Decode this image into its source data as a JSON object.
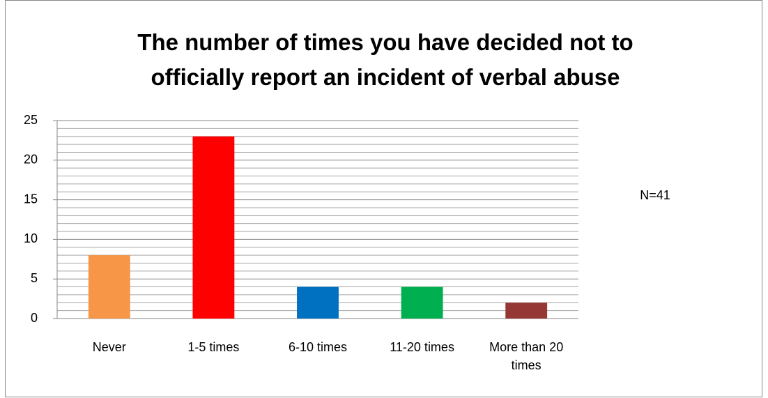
{
  "chart_data": {
    "type": "bar",
    "title": "The number of times you have decided not to officially report an incident of verbal abuse",
    "annotation": "N=41",
    "categories": [
      "Never",
      "1-5 times",
      "6-10 times",
      "11-20  times",
      "More than 20 times"
    ],
    "values": [
      8,
      23,
      4,
      4,
      2
    ],
    "colors": [
      "#f79646",
      "#ff0000",
      "#0070c0",
      "#00b050",
      "#953735"
    ],
    "ylim": [
      0,
      25
    ],
    "yticks": [
      0,
      5,
      10,
      15,
      20,
      25
    ],
    "grid": true,
    "minor_divisions": 5
  }
}
